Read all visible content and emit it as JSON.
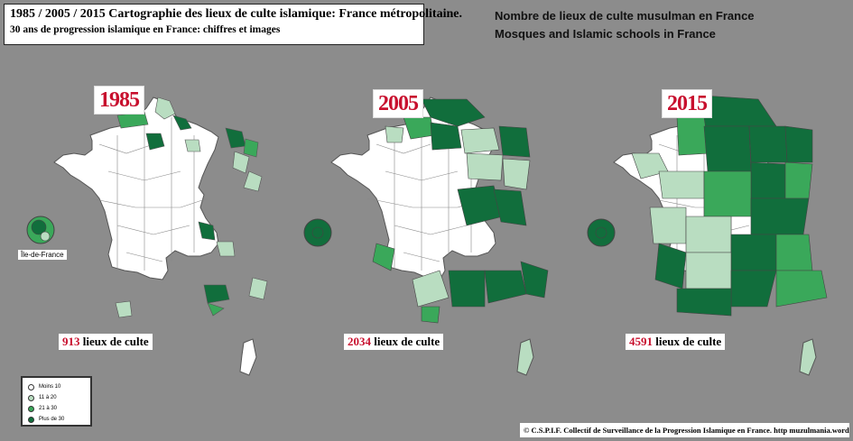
{
  "header": {
    "title_line1": "1985 / 2005 / 2015  Cartographie des lieux de culte islamique: France métropolitaine.",
    "title_line2": "30 ans de progression islamique en France: chiffres et images"
  },
  "subtitles": {
    "line1": "Nombre de lieux de culte musulman en France",
    "line2": "Mosques and Islamic schools in France"
  },
  "maps": [
    {
      "year": "1985",
      "count": "913",
      "count_suffix": " lieux de culte"
    },
    {
      "year": "2005",
      "count": "2034",
      "count_suffix": " lieux de culte"
    },
    {
      "year": "2015",
      "count": "4591",
      "count_suffix": " lieux de culte"
    }
  ],
  "inset_label": "Île-de-France",
  "legend": {
    "items": [
      {
        "label": "Moins 10",
        "color": "#ffffff"
      },
      {
        "label": "11 à 20",
        "color": "#b9ddc1"
      },
      {
        "label": "21 à 30",
        "color": "#3aa85a"
      },
      {
        "label": "Plus de 30",
        "color": "#116e3c"
      }
    ]
  },
  "credit": "© C.S.P.I.F. Collectif de Surveillance de la Progression Islamique en France. http muzulmania.wordpress.com"
}
